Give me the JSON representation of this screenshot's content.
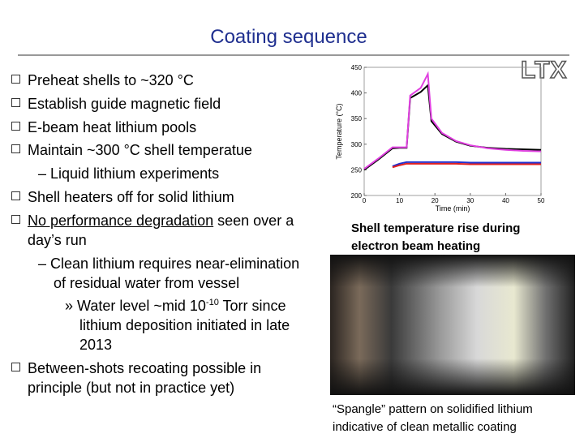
{
  "title": "Coating sequence",
  "logo": "LTX",
  "lines": [
    "Preheat shells to ~320 °C",
    "Establish guide magnetic field",
    "E-beam heat lithium pools",
    "Maintain ~300 °C shell temperatue",
    "– Liquid lithium experiments",
    "Shell heaters off for solid lithium",
    [
      "No performance degradation",
      " seen over a"
    ],
    "day’s run",
    "– Clean lithium requires near-elimination",
    "of residual water from vessel",
    [
      "» Water level ~mid 10",
      "-10",
      " Torr since"
    ],
    "lithium deposition initiated in late",
    "2013",
    "Between-shots recoating possible in",
    "principle (but not in practice yet)"
  ],
  "chart_caption": [
    "Shell temperature rise during",
    "electron beam heating"
  ],
  "photo_caption": [
    "“Spangle” pattern on solidified lithium",
    "indicative of clean metallic coating"
  ],
  "chart_data": {
    "type": "line",
    "y_label": "Temperature (°C)",
    "x_label": "Time (min)",
    "x": [
      0,
      4,
      8,
      10,
      12,
      13,
      16,
      18,
      19,
      22,
      26,
      30,
      35,
      40,
      45,
      50
    ],
    "series": [
      {
        "color": "#000000",
        "values": [
          250,
          270,
          292,
          293,
          293,
          390,
          402,
          415,
          345,
          320,
          305,
          297,
          293,
          291,
          290,
          289
        ]
      },
      {
        "color": "#e040e0",
        "values": [
          252,
          272,
          294,
          294,
          294,
          395,
          410,
          437,
          350,
          322,
          306,
          298,
          292,
          289,
          287,
          286
        ]
      },
      {
        "color": "#2030d0",
        "values": [
          null,
          null,
          257,
          262,
          265,
          265,
          265,
          265,
          265,
          265,
          265,
          264,
          264,
          264,
          264,
          264
        ]
      },
      {
        "color": "#e02020",
        "values": [
          null,
          null,
          255,
          259,
          262,
          262,
          262,
          262,
          262,
          262,
          262,
          261,
          261,
          261,
          261,
          261
        ]
      }
    ],
    "xlim": [
      0,
      50
    ],
    "xticks": [
      0,
      10,
      20,
      30,
      40,
      50
    ],
    "ylim": [
      200,
      450
    ],
    "yticks": [
      200,
      250,
      300,
      350,
      400,
      450
    ]
  }
}
